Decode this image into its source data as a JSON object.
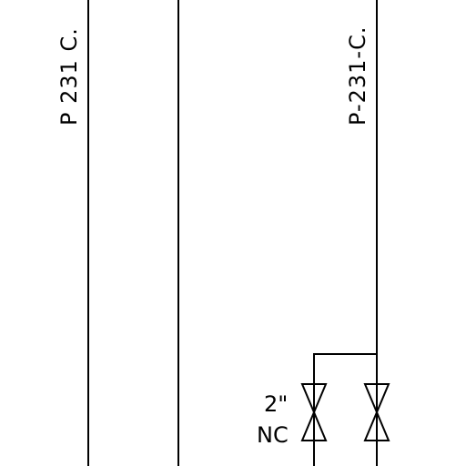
{
  "drawing": {
    "line_labels": {
      "left": "P 231 C.",
      "right": "P-231-C."
    },
    "valve_annotation": {
      "size": "2\"",
      "state": "NC"
    }
  }
}
